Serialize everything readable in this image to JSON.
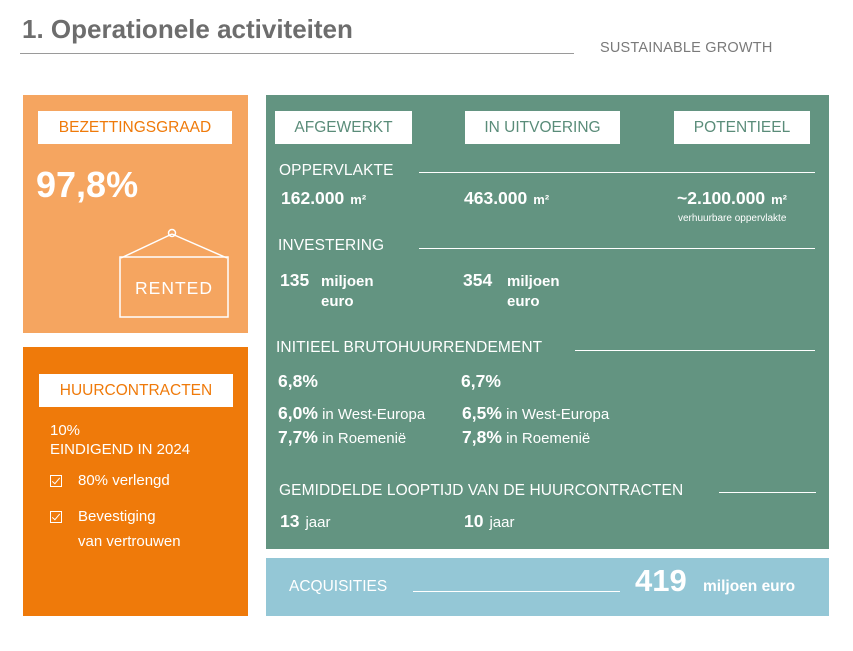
{
  "header": {
    "title": "1. Operationele activiteiten",
    "brand": "SUSTAINABLE GROWTH"
  },
  "occupancy": {
    "label": "BEZETTINGSGRAAD",
    "value": "97,8%",
    "sign_text": "RENTED"
  },
  "leases": {
    "label": "HUURCONTRACTEN",
    "expiring_pct": "10%",
    "expiring_text": "EINDIGEND IN 2024",
    "checks": [
      {
        "line1": "80% verlengd",
        "line2": ""
      },
      {
        "line1": "Bevestiging",
        "line2": "van vertrouwen"
      }
    ]
  },
  "portfolio": {
    "tabs": [
      "AFGEWERKT",
      "IN UITVOERING",
      "POTENTIEEL"
    ],
    "area": {
      "title": "OPPERVLAKTE",
      "completed": "162.000",
      "completed_unit": "m²",
      "in_progress": "463.000",
      "in_progress_unit": "m²",
      "potential": "~2.100.000",
      "potential_unit": "m²",
      "potential_note": "verhuurbare oppervlakte"
    },
    "investment": {
      "title": "INVESTERING",
      "completed": "135",
      "in_progress": "354",
      "unit_line1": "miljoen",
      "unit_line2": "euro"
    },
    "yield": {
      "title": "INITIEEL BRUTOHUURRENDEMENT",
      "completed": "6,8%",
      "in_progress": "6,7%",
      "completed_we": "6,0%",
      "in_progress_we": "6,5%",
      "we_label": "in West-Europa",
      "completed_ro": "7,7%",
      "in_progress_ro": "7,8%",
      "ro_label": "in Roemenië"
    },
    "duration": {
      "title": "GEMIDDELDE LOOPTIJD VAN DE HUURCONTRACTEN",
      "completed": "13",
      "in_progress": "10",
      "unit": "jaar"
    }
  },
  "acquisitions": {
    "label": "ACQUISITIES",
    "value": "419",
    "unit": "miljoen euro"
  },
  "colors": {
    "light_orange": "#f5a560",
    "orange": "#ef7a0a",
    "green": "#639481",
    "light_blue": "#94c7d6",
    "title_grey": "#6d6d6d"
  }
}
